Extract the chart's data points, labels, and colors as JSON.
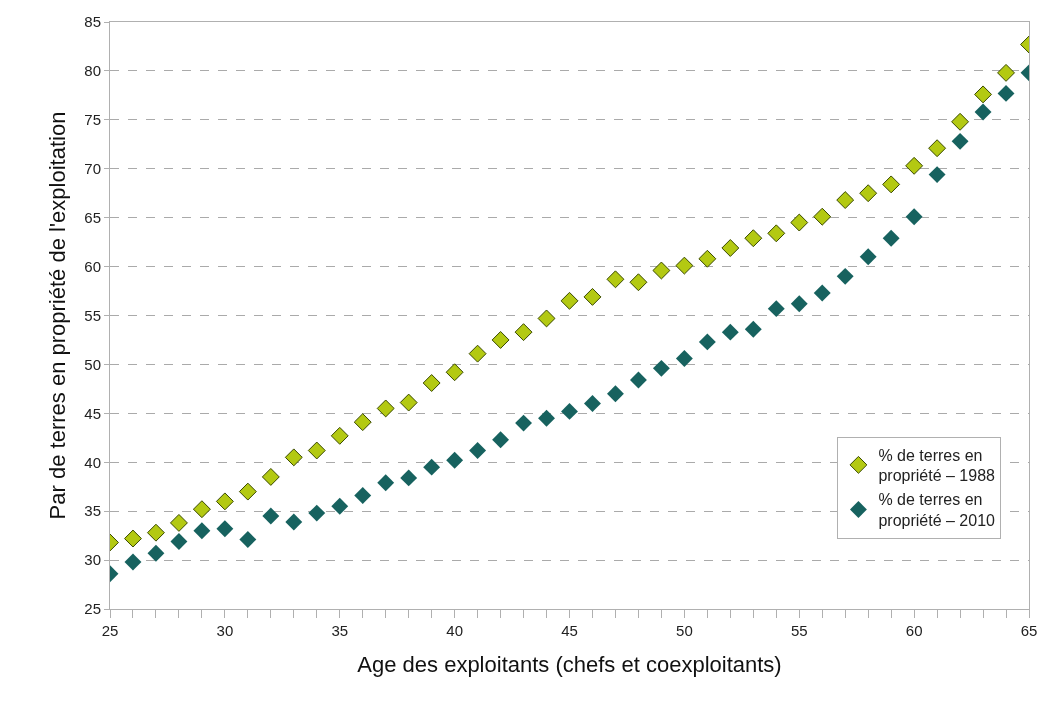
{
  "chart_data": {
    "type": "scatter",
    "xlabel": "Age des exploitants (chefs et coexploitants)",
    "ylabel": "Par de terres en propriété de l'exploitation",
    "x": [
      25,
      26,
      27,
      28,
      29,
      30,
      31,
      32,
      33,
      34,
      35,
      36,
      37,
      38,
      39,
      40,
      41,
      42,
      43,
      44,
      45,
      46,
      47,
      48,
      49,
      50,
      51,
      52,
      53,
      54,
      55,
      56,
      57,
      58,
      59,
      60,
      61,
      62,
      63,
      64,
      65
    ],
    "series": [
      {
        "name": "% de terres en propriété – 1988",
        "color": "#b3c912",
        "values": [
          31.8,
          32.2,
          32.8,
          33.8,
          35.2,
          36.0,
          37.0,
          38.5,
          40.5,
          41.2,
          42.7,
          44.1,
          45.5,
          46.1,
          48.1,
          49.2,
          51.1,
          52.5,
          53.3,
          54.7,
          56.5,
          56.9,
          58.7,
          58.4,
          59.6,
          60.1,
          60.8,
          61.9,
          62.9,
          63.4,
          64.5,
          65.1,
          66.8,
          67.5,
          68.4,
          70.3,
          72.1,
          74.8,
          77.6,
          79.8,
          82.7
        ]
      },
      {
        "name": "% de terres en propriété – 2010",
        "color": "#17625f",
        "values": [
          28.6,
          29.8,
          30.7,
          31.9,
          33.0,
          33.2,
          32.1,
          34.5,
          33.9,
          34.8,
          35.5,
          36.6,
          37.9,
          38.4,
          39.5,
          40.2,
          41.2,
          42.3,
          44.0,
          44.5,
          45.2,
          46.0,
          47.0,
          48.4,
          49.6,
          50.6,
          52.3,
          53.3,
          53.6,
          55.7,
          56.2,
          57.3,
          59.0,
          61.0,
          62.9,
          65.1,
          69.4,
          72.8,
          75.8,
          77.7,
          79.8
        ]
      }
    ],
    "xlim": [
      25,
      65
    ],
    "xticks": [
      25,
      30,
      35,
      40,
      45,
      50,
      55,
      60,
      65
    ],
    "ylim": [
      25,
      85
    ],
    "yticks": [
      25,
      30,
      35,
      40,
      45,
      50,
      55,
      60,
      65,
      70,
      75,
      80,
      85
    ],
    "grid": "y",
    "legend": "bottom right",
    "marker": "diamond"
  }
}
